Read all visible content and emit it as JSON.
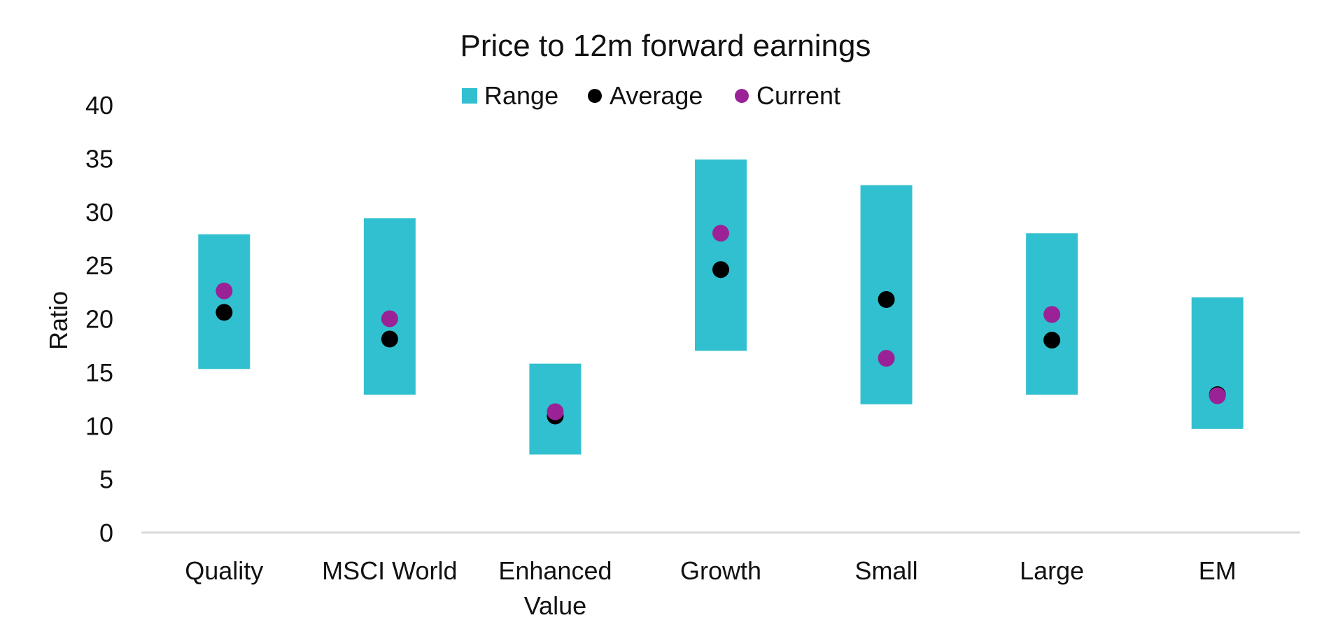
{
  "chart_data": {
    "type": "range-dot",
    "title": "Price to 12m forward earnings",
    "ylabel": "Ratio",
    "xlabel": "",
    "ylim": [
      0,
      40
    ],
    "yticks": [
      0,
      5,
      10,
      15,
      20,
      25,
      30,
      35,
      40
    ],
    "categories": [
      "Quality",
      "MSCI World",
      "Enhanced Value",
      "Growth",
      "Small",
      "Large",
      "EM"
    ],
    "category_label_lines": [
      [
        "Quality"
      ],
      [
        "MSCI World"
      ],
      [
        "Enhanced",
        "Value"
      ],
      [
        "Growth"
      ],
      [
        "Small"
      ],
      [
        "Large"
      ],
      [
        "EM"
      ]
    ],
    "grid": false,
    "legend_position": "top-center",
    "series": [
      {
        "name": "Range",
        "kind": "range",
        "color": "#31c0cf",
        "low": [
          15.3,
          12.9,
          7.3,
          17.0,
          12.0,
          12.9,
          9.7
        ],
        "high": [
          27.9,
          29.4,
          15.8,
          34.9,
          32.5,
          28.0,
          22.0
        ]
      },
      {
        "name": "Average",
        "kind": "dot",
        "color": "#000000",
        "values": [
          20.6,
          18.1,
          10.9,
          24.6,
          21.8,
          18.0,
          12.9
        ]
      },
      {
        "name": "Current",
        "kind": "dot",
        "color": "#9b2296",
        "values": [
          22.6,
          20.0,
          11.3,
          28.0,
          16.3,
          20.4,
          12.8
        ]
      }
    ]
  }
}
